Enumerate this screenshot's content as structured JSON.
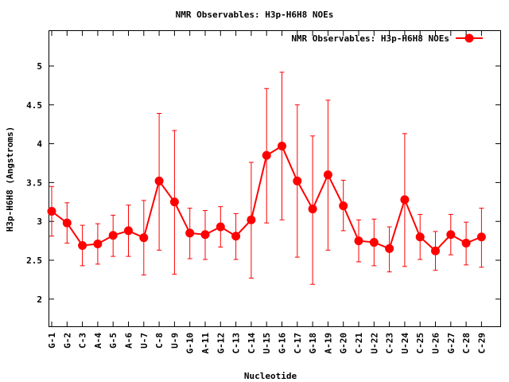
{
  "chart_data": {
    "type": "line",
    "title": "NMR Observables: H3p-H6H8 NOEs",
    "xlabel": "Nucleotide",
    "ylabel": "H3p-H6H8 (Angstroms)",
    "ylim": [
      1.65,
      5.45
    ],
    "yticks": [
      "2",
      "2.5",
      "3",
      "3.5",
      "4",
      "4.5",
      "5"
    ],
    "legend_position": "top-right",
    "grid": false,
    "series_color": "#ff0000",
    "categories": [
      "G-1",
      "G-2",
      "C-3",
      "A-4",
      "G-5",
      "A-6",
      "U-7",
      "C-8",
      "U-9",
      "G-10",
      "A-11",
      "G-12",
      "C-13",
      "C-14",
      "U-15",
      "G-16",
      "C-17",
      "G-18",
      "A-19",
      "G-20",
      "C-21",
      "U-22",
      "C-23",
      "U-24",
      "C-25",
      "U-26",
      "G-27",
      "C-28",
      "C-29"
    ],
    "series": [
      {
        "name": "NMR Observables: H3p-H6H8 NOEs",
        "values": [
          3.13,
          2.98,
          2.69,
          2.71,
          2.82,
          2.88,
          2.79,
          3.52,
          3.25,
          2.85,
          2.83,
          2.93,
          2.81,
          3.02,
          3.85,
          3.97,
          3.52,
          3.16,
          3.6,
          3.2,
          2.75,
          2.73,
          2.65,
          3.28,
          2.8,
          2.62,
          2.83,
          2.72,
          2.8
        ],
        "err_low": [
          2.81,
          2.72,
          2.43,
          2.45,
          2.55,
          2.55,
          2.31,
          2.63,
          2.32,
          2.52,
          2.51,
          2.67,
          2.51,
          2.27,
          2.98,
          3.02,
          2.54,
          2.19,
          2.63,
          2.88,
          2.48,
          2.43,
          2.35,
          2.42,
          2.51,
          2.37,
          2.57,
          2.44,
          2.41
        ],
        "err_high": [
          3.45,
          3.24,
          2.95,
          2.97,
          3.08,
          3.21,
          3.27,
          4.39,
          4.17,
          3.17,
          3.14,
          3.19,
          3.1,
          3.76,
          4.71,
          4.92,
          4.5,
          4.1,
          4.56,
          3.53,
          3.02,
          3.03,
          2.93,
          4.13,
          3.09,
          2.87,
          3.09,
          2.99,
          3.17
        ]
      }
    ]
  }
}
